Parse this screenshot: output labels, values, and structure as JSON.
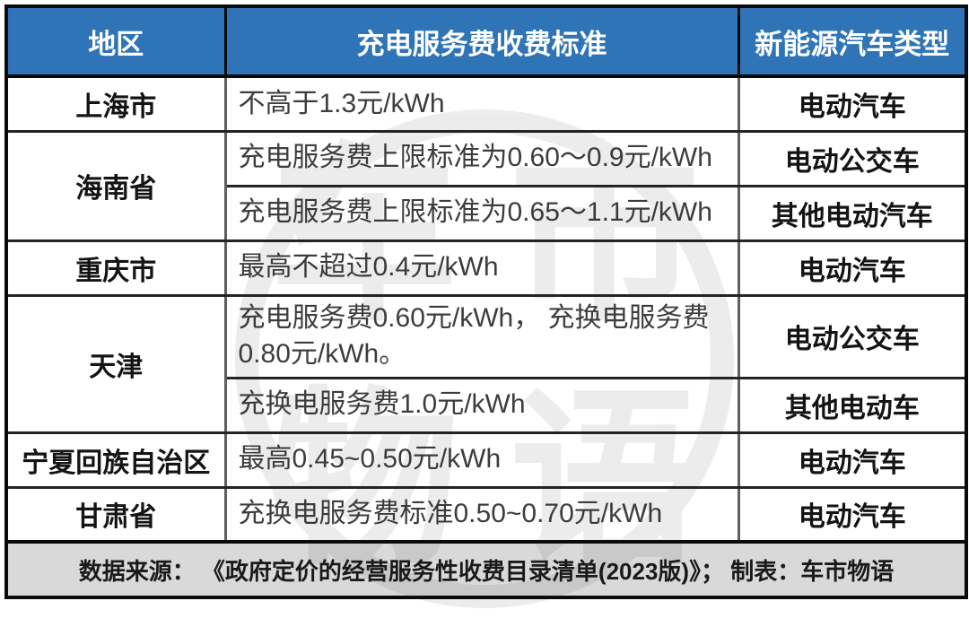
{
  "chart_data": {
    "type": "table",
    "columns": [
      "地区",
      "充电服务费收费标准",
      "新能源汽车类型"
    ],
    "rows": [
      [
        "上海市",
        "不高于1.3元/kWh",
        "电动汽车"
      ],
      [
        "海南省",
        "充电服务费上限标准为0.60～0.9元/kWh",
        "电动公交车"
      ],
      [
        "海南省",
        "充电服务费上限标准为0.65～1.1元/kWh",
        "其他电动汽车"
      ],
      [
        "重庆市",
        "最高不超过0.4元/kWh",
        "电动汽车"
      ],
      [
        "天津",
        "充电服务费0.60元/kWh， 充换电服务费0.80元/kWh。",
        "电动公交车"
      ],
      [
        "天津",
        "充换电服务费1.0元/kWh",
        "其他电动车"
      ],
      [
        "宁夏回族自治区",
        "最高0.45~0.50元/kWh",
        "电动汽车"
      ],
      [
        "甘肃省",
        "充换电服务费标准0.50~0.70元/kWh",
        "电动汽车"
      ]
    ],
    "source_note": "数据来源： 《政府定价的经营服务性收费目录清单(2023版)》； 制表：车市物语"
  },
  "table": {
    "headers": [
      "地区",
      "充电服务费收费标准",
      "新能源汽车类型"
    ],
    "rows": [
      {
        "region": "上海市",
        "standard": "不高于1.3元/kWh",
        "type": "电动汽车"
      },
      {
        "region": "海南省",
        "standard": "充电服务费上限标准为0.60～0.9元/kWh",
        "type": "电动公交车"
      },
      {
        "region": "海南省",
        "standard": "充电服务费上限标准为0.65～1.1元/kWh",
        "type": "其他电动汽车"
      },
      {
        "region": "重庆市",
        "standard": "最高不超过0.4元/kWh",
        "type": "电动汽车"
      },
      {
        "region": "天津",
        "standard": "充电服务费0.60元/kWh， 充换电服务费\n0.80元/kWh。",
        "type": "电动公交车"
      },
      {
        "region": "天津",
        "standard": "充换电服务费1.0元/kWh",
        "type": "其他电动车"
      },
      {
        "region": "宁夏回族自治区",
        "standard": "最高0.45~0.50元/kWh",
        "type": "电动汽车"
      },
      {
        "region": "甘肃省",
        "standard": "充换电服务费标准0.50~0.70元/kWh",
        "type": "电动汽车"
      }
    ],
    "footer": "数据来源： 《政府定价的经营服务性收费目录清单(2023版)》； 制表：车市物语"
  },
  "watermark": {
    "name": "车市物语",
    "chars": [
      "车",
      "市",
      "物",
      "语"
    ]
  },
  "colors": {
    "header_bg": "#2E74B6",
    "header_text": "#FFFFFF",
    "footer_bg": "#D9D9D9",
    "border_outer": "#0A0A0A",
    "border_horizontal": "#242424",
    "border_vertical": "#5F5F5F",
    "region_text": "#141414",
    "standard_text": "#3D3D3D"
  }
}
